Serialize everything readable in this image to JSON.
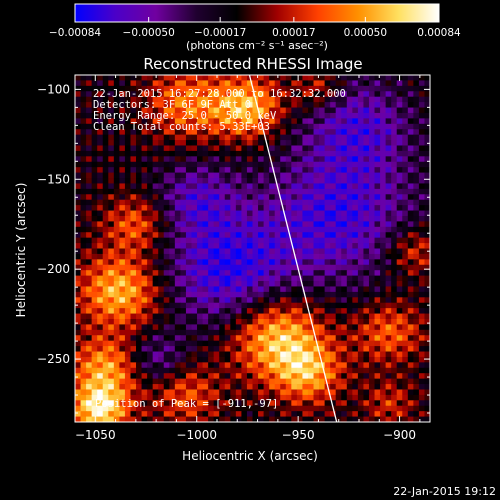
{
  "chart_data": {
    "type": "heatmap",
    "title": "Reconstructed RHESSI Image",
    "xlabel": "Heliocentric X (arcsec)",
    "ylabel": "Heliocentric Y (arcsec)",
    "xlim": [
      -1060,
      -885
    ],
    "ylim": [
      -285,
      -92
    ],
    "xticks": [
      -1050,
      -1000,
      -950,
      -900
    ],
    "xtick_labels": [
      "−1050",
      "−1000",
      "−950",
      "−900"
    ],
    "yticks": [
      -100,
      -150,
      -200,
      -250
    ],
    "ytick_labels": [
      "−100",
      "−150",
      "−200",
      "−250"
    ],
    "colorbar": {
      "range": [
        -0.00084,
        0.00084
      ],
      "ticks": [
        -0.00084,
        -0.0005,
        -0.00017,
        0.00017,
        0.0005,
        0.00084
      ],
      "tick_labels": [
        "−0.00084",
        "−0.00050",
        "−0.00017",
        "0.00017",
        "0.00050",
        "0.00084"
      ],
      "unit_label": "(photons cm⁻² s⁻¹ asec⁻²)",
      "colors": [
        "#0000ff",
        "#4b00c8",
        "#7000a0",
        "#200030",
        "#000000",
        "#a00000",
        "#ff4000",
        "#ff9000",
        "#ffe060",
        "#ffffff"
      ]
    },
    "annotations": [
      "22-Jan-2015 16:27:28.000 to 16:32:32.000",
      "Detectors: 3F 6F 9F  Att 0",
      "Energy Range: 25.0 - 50.0 keV",
      "Clean     Total counts: 5.33E+03"
    ],
    "peak_label": "Position of Peak = [-911,-97]",
    "limb_line": {
      "x": [
        -974,
        -931
      ],
      "y": [
        -92,
        -285
      ]
    },
    "bright_regions": [
      {
        "x": -1048,
        "y": -278,
        "sigma": 10,
        "value": 0.00084
      },
      {
        "x": -1038,
        "y": -212,
        "sigma": 14,
        "value": 0.0007
      },
      {
        "x": -1030,
        "y": -175,
        "sigma": 11,
        "value": 0.00045
      },
      {
        "x": -1045,
        "y": -255,
        "sigma": 12,
        "value": 0.0006
      },
      {
        "x": -975,
        "y": -110,
        "sigma": 12,
        "value": 0.0007
      },
      {
        "x": -1005,
        "y": -108,
        "sigma": 14,
        "value": 0.0005
      },
      {
        "x": -960,
        "y": -238,
        "sigma": 16,
        "value": 0.00075
      },
      {
        "x": -945,
        "y": -258,
        "sigma": 12,
        "value": 0.00055
      },
      {
        "x": -905,
        "y": -235,
        "sigma": 12,
        "value": 0.00045
      },
      {
        "x": -893,
        "y": -190,
        "sigma": 10,
        "value": 0.0004
      },
      {
        "x": -940,
        "y": -100,
        "sigma": 8,
        "value": 0.00035
      },
      {
        "x": -1005,
        "y": -270,
        "sigma": 12,
        "value": 0.0004
      },
      {
        "x": -905,
        "y": -275,
        "sigma": 9,
        "value": 0.0003
      }
    ],
    "dark_regions": [
      {
        "x": -985,
        "y": -200,
        "sigma": 22,
        "value": -0.0006
      },
      {
        "x": -930,
        "y": -170,
        "sigma": 26,
        "value": -0.00055
      },
      {
        "x": -920,
        "y": -120,
        "sigma": 18,
        "value": -0.00045
      },
      {
        "x": -1000,
        "y": -160,
        "sigma": 14,
        "value": -0.0004
      },
      {
        "x": -1020,
        "y": -250,
        "sigma": 10,
        "value": -0.00035
      }
    ]
  },
  "footer": {
    "timestamp": "22-Jan-2015 19:12"
  }
}
